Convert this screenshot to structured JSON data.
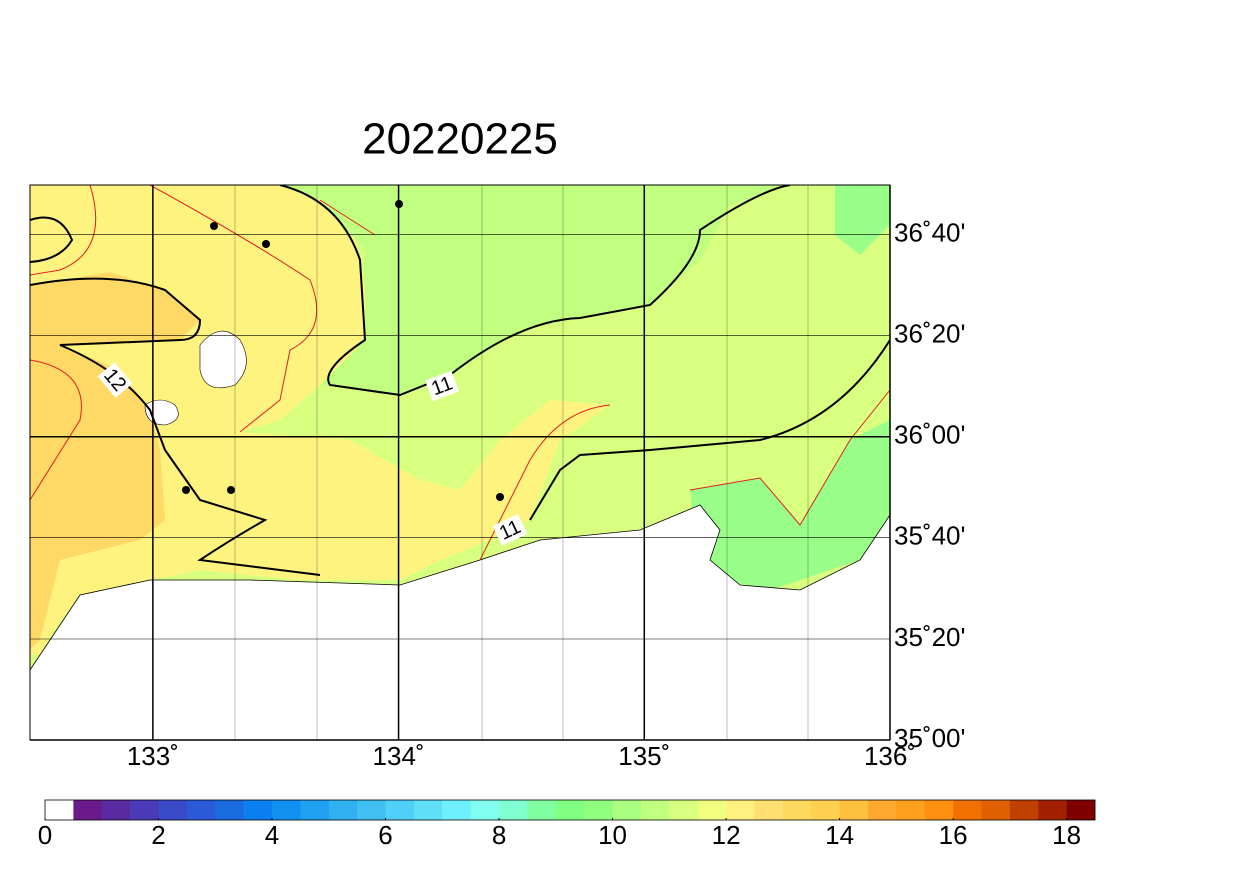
{
  "chart_data": {
    "type": "map",
    "title": "20220225",
    "xlim": [
      132.5,
      136
    ],
    "ylim": [
      35,
      36.83
    ],
    "xticks": [
      {
        "value": 133,
        "label": "133˚"
      },
      {
        "value": 134,
        "label": "134˚"
      },
      {
        "value": 135,
        "label": "135˚"
      },
      {
        "value": 136,
        "label": "136˚"
      }
    ],
    "yticks": [
      {
        "value": 35,
        "label": "35˚00'"
      },
      {
        "value": 35.333,
        "label": "35˚20'"
      },
      {
        "value": 35.667,
        "label": "35˚40'"
      },
      {
        "value": 36,
        "label": "36˚00'"
      },
      {
        "value": 36.333,
        "label": "36˚20'"
      },
      {
        "value": 36.667,
        "label": "36˚40'"
      }
    ],
    "contour_labels": [
      "12",
      "11",
      "11"
    ],
    "colorbar": {
      "range": [
        0,
        18.5
      ],
      "ticks": [
        0,
        2,
        4,
        6,
        8,
        10,
        12,
        14,
        16,
        18
      ],
      "colors": [
        "#ffffff",
        "#6a1a8a",
        "#5a2aa0",
        "#4a3ab8",
        "#3a4ac8",
        "#2a5ad8",
        "#1a6ae0",
        "#0a80f0",
        "#1090f0",
        "#20a0f0",
        "#30b0f0",
        "#40c0f0",
        "#50d0f8",
        "#60e0f8",
        "#70f0ff",
        "#80fff0",
        "#80ffd0",
        "#80ffa0",
        "#80ff80",
        "#90ff80",
        "#a8ff80",
        "#c0ff80",
        "#d8ff80",
        "#f0ff80",
        "#fff080",
        "#ffe070",
        "#ffd860",
        "#ffd050",
        "#ffc040",
        "#ffa830",
        "#ffa020",
        "#ff9010",
        "#f07000",
        "#e06000",
        "#c04000",
        "#a02000",
        "#800000"
      ]
    }
  }
}
